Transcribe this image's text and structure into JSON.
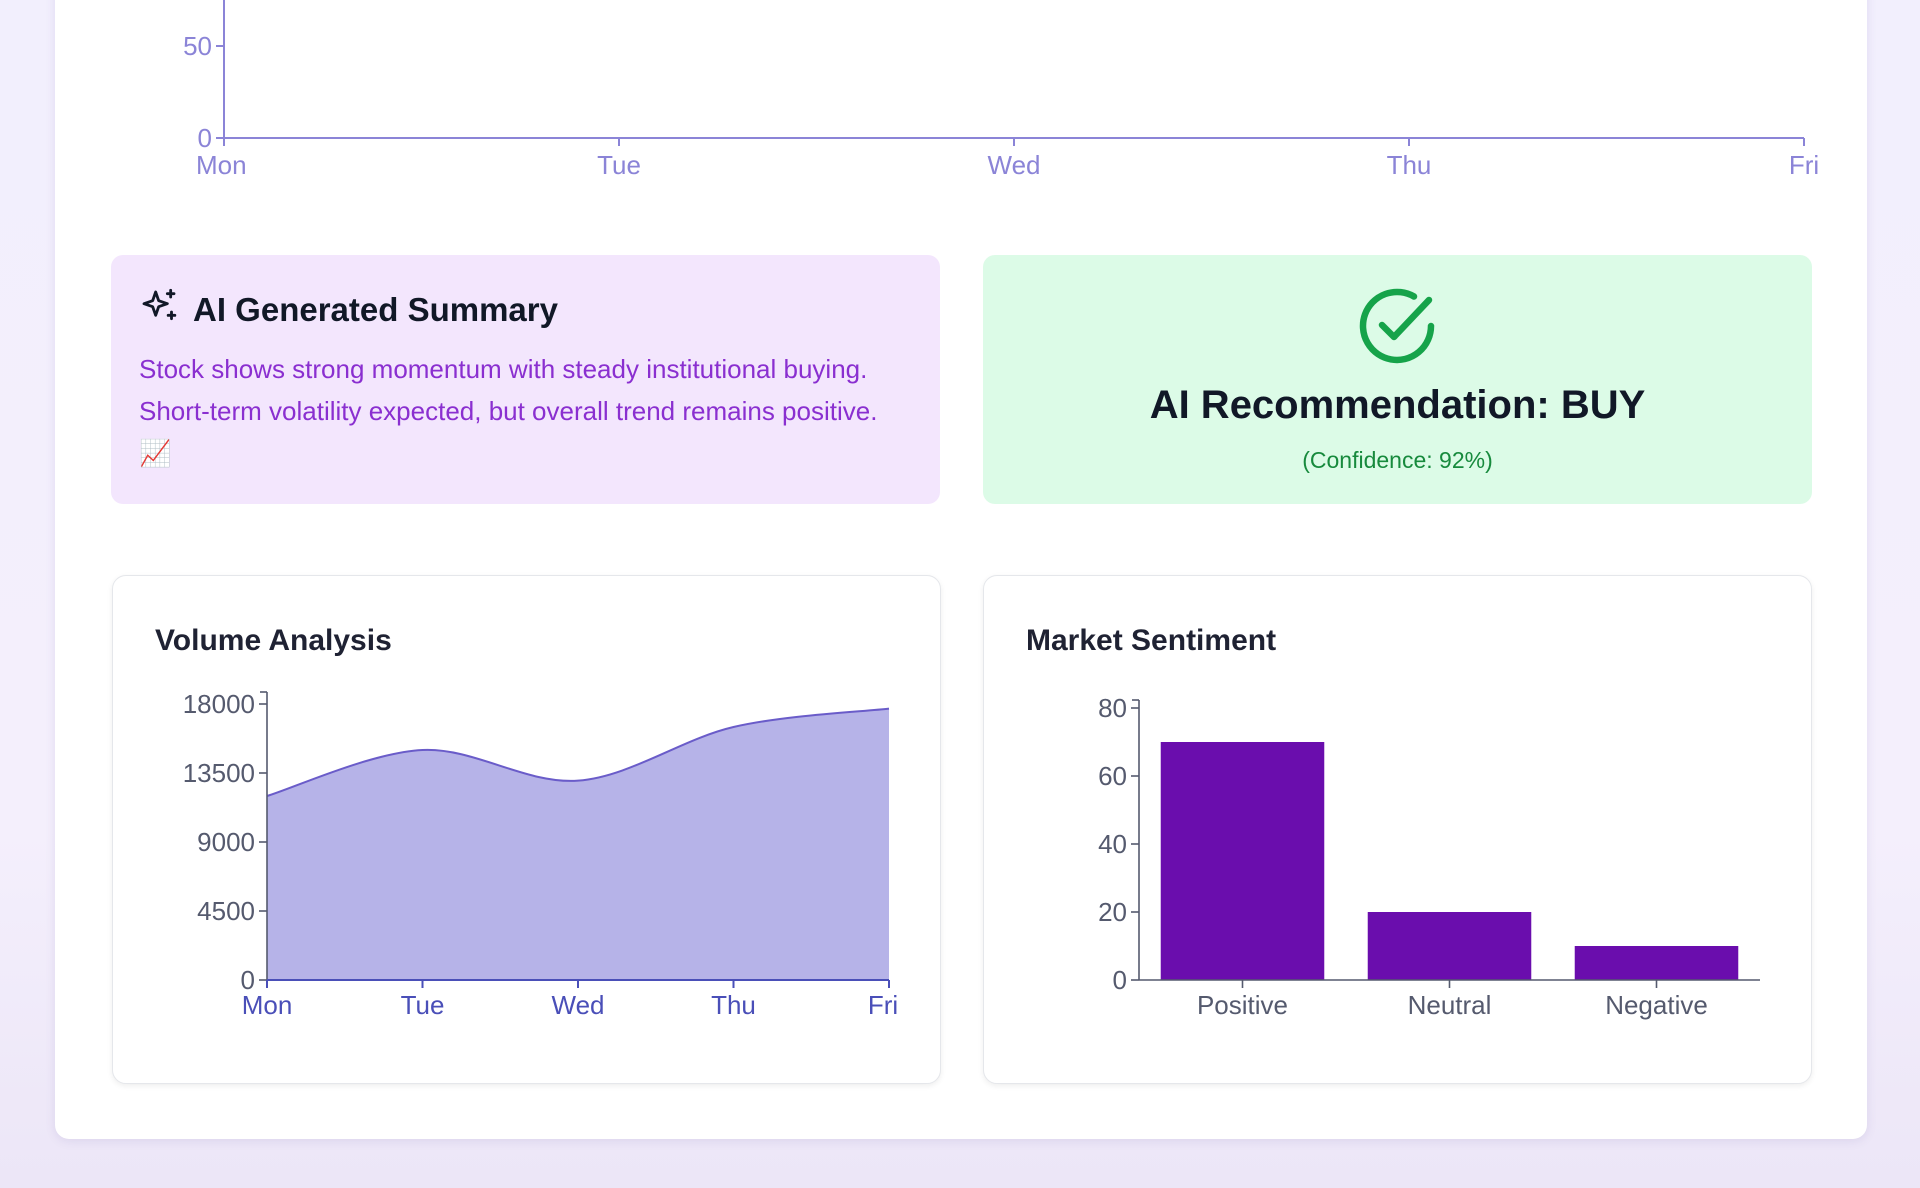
{
  "top_chart": {
    "y_ticks": [
      0,
      50
    ],
    "x_labels": [
      "Mon",
      "Tue",
      "Wed",
      "Thu",
      "Fri"
    ]
  },
  "summary": {
    "icon": "sparkles-icon",
    "title": "AI Generated Summary",
    "text": "Stock shows strong momentum with steady institutional buying. Short-term volatility expected, but overall trend remains positive. 📈"
  },
  "recommendation": {
    "icon": "check-circle-icon",
    "title": "AI Recommendation: BUY",
    "confidence": "(Confidence: 92%)",
    "color": "#16a34a"
  },
  "volume": {
    "title": "Volume Analysis"
  },
  "sentiment": {
    "title": "Market Sentiment"
  },
  "chart_data": [
    {
      "type": "area",
      "x": [
        "Mon",
        "Tue",
        "Wed",
        "Thu",
        "Fri"
      ],
      "values": [
        12000,
        15000,
        13000,
        16500,
        17700
      ],
      "yticks": [
        0,
        4500,
        9000,
        13500,
        18000
      ],
      "ylim": [
        0,
        18000
      ],
      "color": "#b6b3e8",
      "stroke": "#6a5cc9"
    },
    {
      "type": "bar",
      "categories": [
        "Positive",
        "Neutral",
        "Negative"
      ],
      "values": [
        70,
        20,
        10
      ],
      "yticks": [
        0,
        20,
        40,
        60,
        80
      ],
      "ylim": [
        0,
        80
      ],
      "color": "#6a0dad"
    }
  ]
}
